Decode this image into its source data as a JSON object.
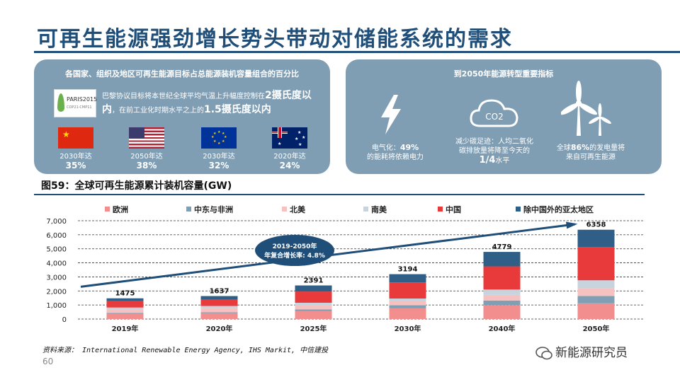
{
  "page": {
    "title": "可再生能源强劲增长势头带动对储能系统的需求",
    "page_number": "60",
    "source": "资料来源： International Renewable Energy Agency, IHS Markit, 中信建投",
    "watermark": "新能源研究员"
  },
  "left_panel": {
    "title": "各国家、组织及地区可再生能源目标占总能源装机容量组合的百分比",
    "logo": {
      "line1": "PARIS2015",
      "line2": "COP21·CMP11"
    },
    "goal": {
      "part1": "巴黎协议目标将本世纪全球平均气温上升幅度控制在",
      "big1": "2摄氏度以内",
      "part2": "，在前工业化时期水平之上的",
      "big2": "1.5摄氏度以内"
    },
    "countries": [
      {
        "flag": "china-flag",
        "year": "2030年达",
        "pct": "35%"
      },
      {
        "flag": "usa-flag",
        "year": "2050年达",
        "pct": "38%"
      },
      {
        "flag": "eu-flag",
        "year": "2030年达",
        "pct": "32%"
      },
      {
        "flag": "australia-flag",
        "year": "2020年达",
        "pct": "24%"
      }
    ]
  },
  "right_panel": {
    "title": "到2050年能源转型重要指标",
    "indicators": [
      {
        "icon": "lightning-icon",
        "line1": "电气化：",
        "value": "49%",
        "line2": "的能耗将依赖电力"
      },
      {
        "icon": "co2-cloud-icon",
        "icon_text": "CO2",
        "line1": "减少碳足迹：人均二氧化",
        "line2": "碳排放量将降至今天的",
        "value": "1/4",
        "line3": "水平"
      },
      {
        "icon": "wind-turbine-icon",
        "line1": "全球",
        "value": "86%",
        "line2": "的发电量将",
        "line3": "来自可再生能源"
      }
    ]
  },
  "chart_data": {
    "type": "bar",
    "stacked": true,
    "title": "图59：全球可再生能源累计装机容量(GW)",
    "categories": [
      "2019年",
      "2020年",
      "2025年",
      "2030年",
      "2040年",
      "2050年"
    ],
    "series": [
      {
        "name": "欧洲",
        "color": "#f28e8e",
        "values": [
          380,
          420,
          560,
          780,
          1000,
          1120
        ]
      },
      {
        "name": "中东与非洲",
        "color": "#7f9fb5",
        "values": [
          60,
          70,
          120,
          200,
          320,
          520
        ]
      },
      {
        "name": "北美",
        "color": "#f6c1c1",
        "values": [
          260,
          300,
          300,
          280,
          400,
          540
        ]
      },
      {
        "name": "南美",
        "color": "#c7d4de",
        "values": [
          120,
          140,
          180,
          200,
          380,
          580
        ]
      },
      {
        "name": "中国",
        "color": "#e83a3a",
        "values": [
          450,
          480,
          800,
          1150,
          1650,
          2360
        ]
      },
      {
        "name": "除中国外的亚太地区",
        "color": "#2f5f86",
        "values": [
          205,
          227,
          431,
          584,
          1029,
          1238
        ]
      }
    ],
    "totals": [
      1475,
      1637,
      2391,
      3194,
      4779,
      6358
    ],
    "ylim": [
      0,
      7000
    ],
    "yticks": [
      "0",
      "1,000",
      "2,000",
      "3,000",
      "4,000",
      "5,000",
      "6,000",
      "7,000"
    ],
    "legend_position": "top",
    "annotation": {
      "line1": "2019-2050年",
      "line2": "年复合增长率: 4.8%"
    },
    "trend": {
      "from": [
        0,
        2300
      ],
      "to": [
        5,
        6750
      ]
    }
  }
}
